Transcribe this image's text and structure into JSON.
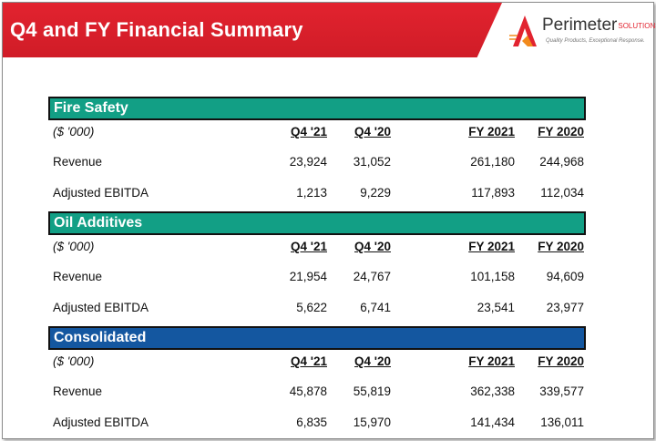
{
  "header": {
    "title": "Q4 and FY Financial Summary",
    "brand_color": "#e2232f"
  },
  "logo": {
    "name": "Perimeter",
    "suffix": "SOLUTIONS",
    "tagline": "Quality Products, Exceptional Response."
  },
  "columns": [
    "Q4 '21",
    "Q4 '20",
    "FY 2021",
    "FY 2020"
  ],
  "sections": [
    {
      "title": "Fire Safety",
      "color": "#129f85",
      "units": "($ '000)",
      "rows": [
        {
          "label": "Revenue",
          "values": [
            "23,924",
            "31,052",
            "261,180",
            "244,968"
          ]
        },
        {
          "label": "Adjusted EBITDA",
          "values": [
            "1,213",
            "9,229",
            "117,893",
            "112,034"
          ]
        }
      ]
    },
    {
      "title": "Oil Additives",
      "color": "#129f85",
      "units": "($ '000)",
      "rows": [
        {
          "label": "Revenue",
          "values": [
            "21,954",
            "24,767",
            "101,158",
            "94,609"
          ]
        },
        {
          "label": "Adjusted EBITDA",
          "values": [
            "5,622",
            "6,741",
            "23,541",
            "23,977"
          ]
        }
      ]
    },
    {
      "title": "Consolidated",
      "color": "#1457a0",
      "units": "($ '000)",
      "rows": [
        {
          "label": "Revenue",
          "values": [
            "45,878",
            "55,819",
            "362,338",
            "339,577"
          ]
        },
        {
          "label": "Adjusted EBITDA",
          "values": [
            "6,835",
            "15,970",
            "141,434",
            "136,011"
          ]
        }
      ]
    }
  ]
}
